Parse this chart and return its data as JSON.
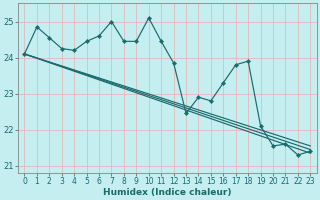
{
  "title": "",
  "xlabel": "Humidex (Indice chaleur)",
  "xlim": [
    -0.5,
    23.5
  ],
  "ylim": [
    20.8,
    25.5
  ],
  "yticks": [
    21,
    22,
    23,
    24,
    25
  ],
  "xticks": [
    0,
    1,
    2,
    3,
    4,
    5,
    6,
    7,
    8,
    9,
    10,
    11,
    12,
    13,
    14,
    15,
    16,
    17,
    18,
    19,
    20,
    21,
    22,
    23
  ],
  "background_color": "#c5eef0",
  "grid_color": "#e8b0b0",
  "line_color": "#1a6b6b",
  "y_main": [
    24.1,
    24.85,
    24.55,
    24.25,
    24.2,
    24.45,
    24.6,
    25.0,
    24.45,
    24.45,
    25.1,
    24.45,
    23.85,
    22.45,
    22.9,
    22.8,
    23.3,
    23.8,
    23.9,
    22.1,
    21.55,
    21.6,
    21.3,
    21.4
  ],
  "straight_lines": [
    {
      "x0": 0,
      "y0": 24.1,
      "x1": 23,
      "y1": 21.55
    },
    {
      "x0": 0,
      "y0": 24.1,
      "x1": 23,
      "y1": 21.45
    },
    {
      "x0": 0,
      "y0": 24.1,
      "x1": 23,
      "y1": 21.35
    }
  ],
  "tick_fontsize": 5.5,
  "xlabel_fontsize": 6.5,
  "line_width": 0.85,
  "marker_size": 2.2
}
